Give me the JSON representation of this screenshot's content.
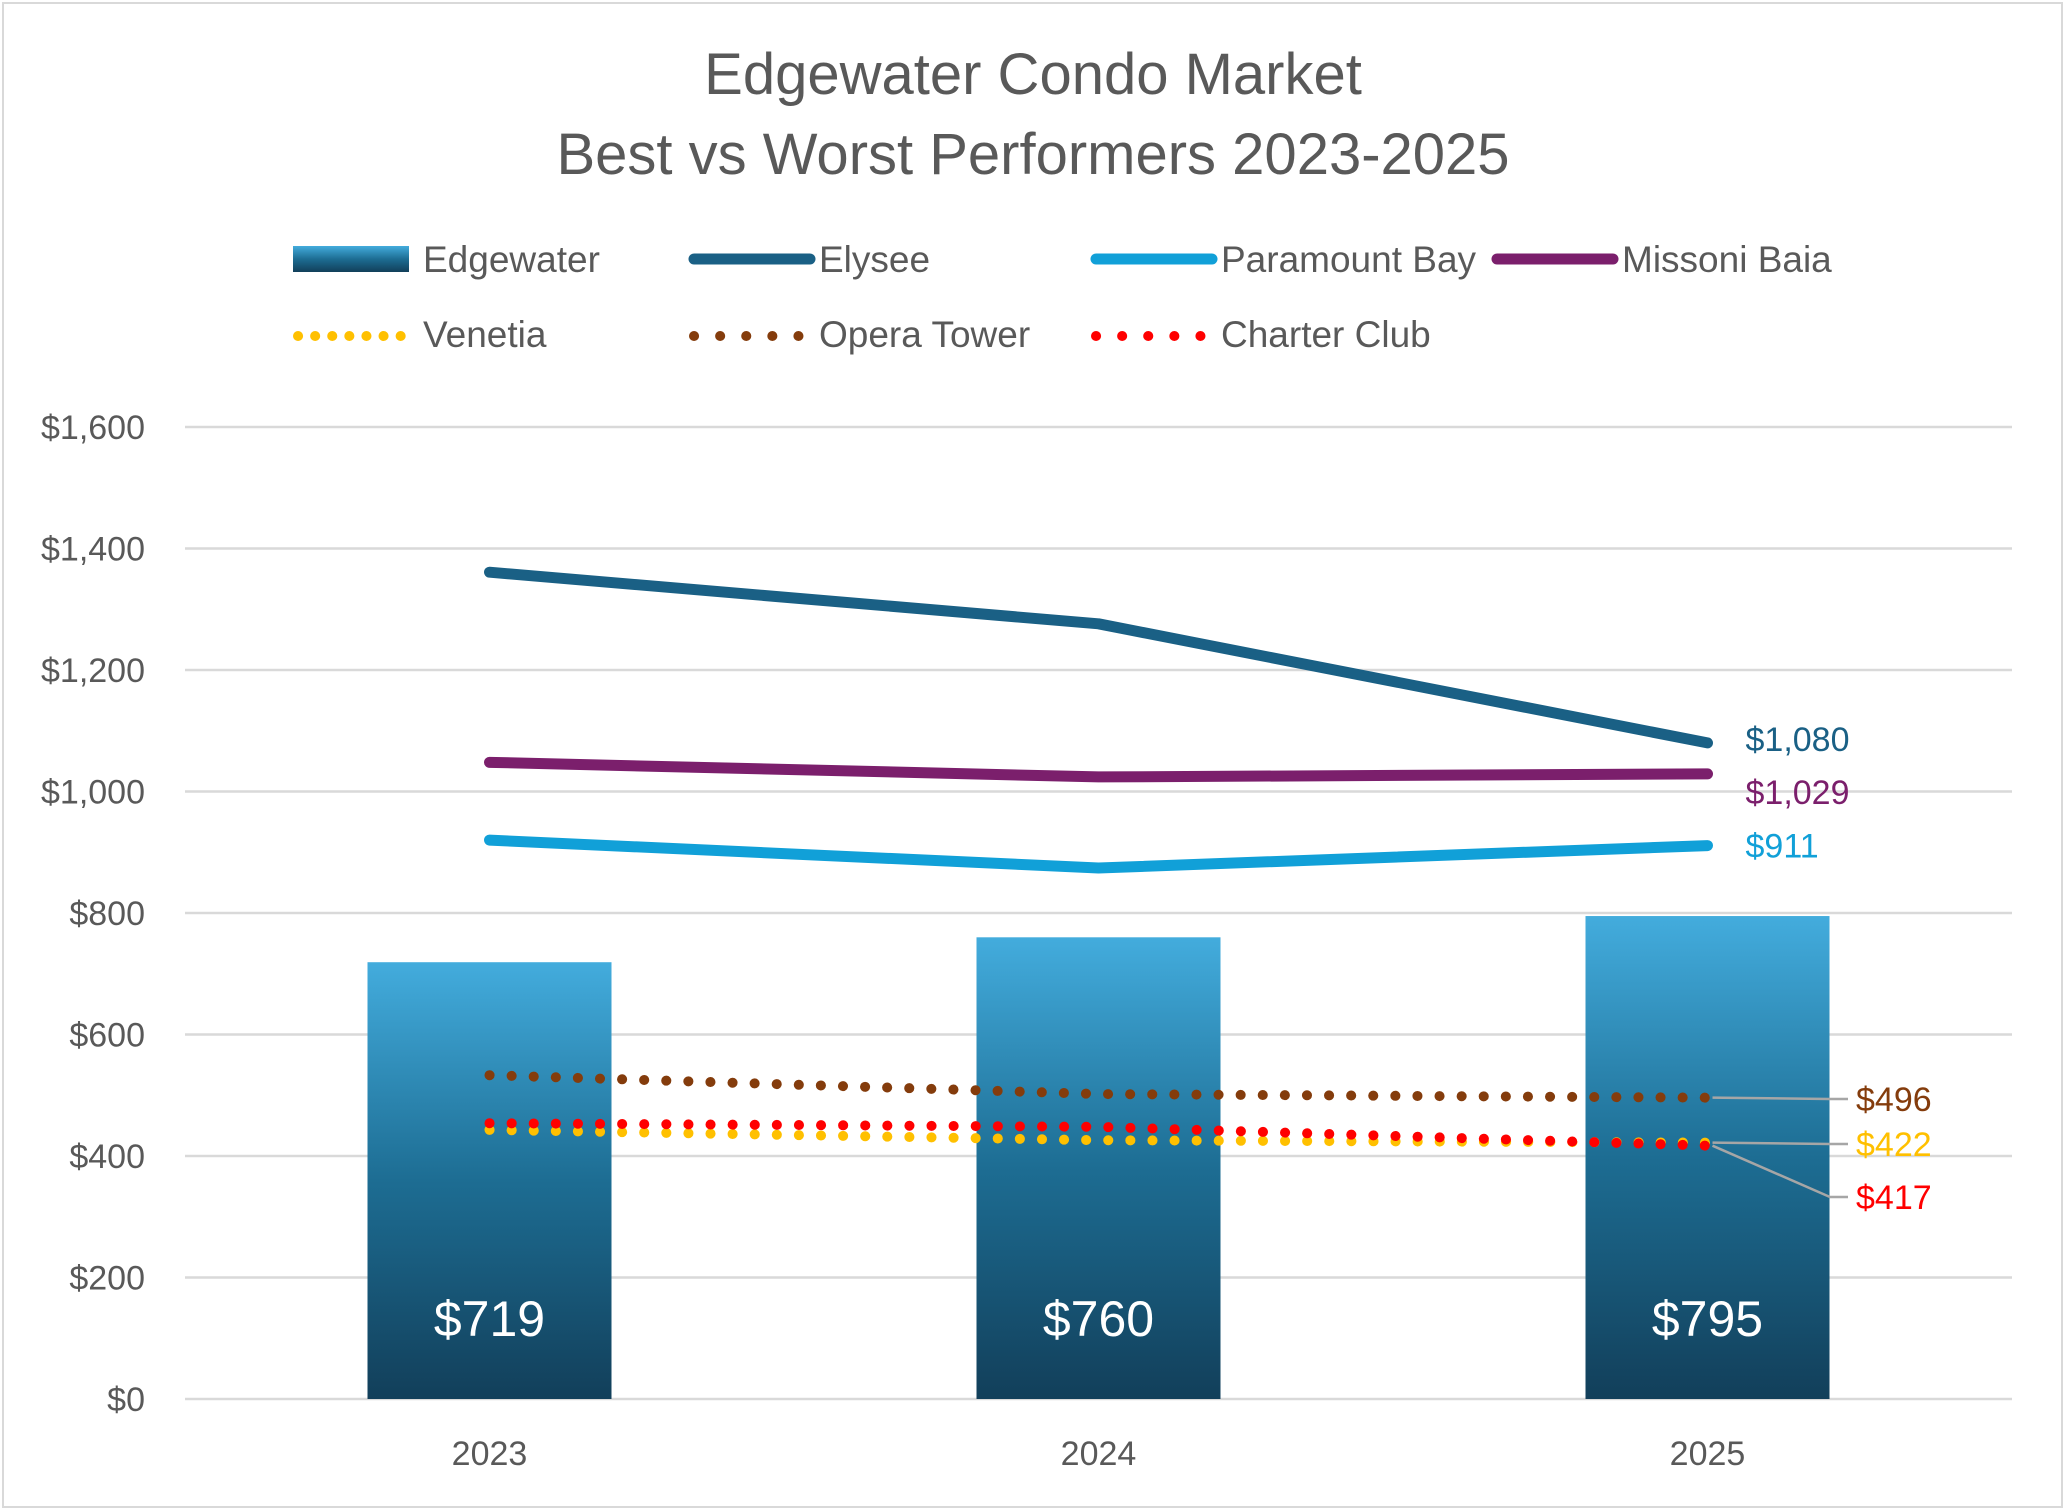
{
  "chart_data": {
    "type": "bar+line",
    "title": [
      "Edgewater Condo Market",
      "Best vs Worst Performers 2023-2025"
    ],
    "xlabel": "",
    "ylabel": "",
    "categories": [
      "2023",
      "2024",
      "2025"
    ],
    "ylim": [
      0,
      1600
    ],
    "yticks": [
      0,
      200,
      400,
      600,
      800,
      1000,
      1200,
      1400,
      1600
    ],
    "ytick_labels": [
      "$0",
      "$200",
      "$400",
      "$600",
      "$800",
      "$1,000",
      "$1,200",
      "$1,400",
      "$1,600"
    ],
    "grid": true,
    "legend_position": "top",
    "series": [
      {
        "name": "Edgewater",
        "kind": "bar",
        "color": "#1d6d93",
        "values": [
          719,
          760,
          795
        ],
        "data_labels": [
          "$719",
          "$760",
          "$795"
        ]
      },
      {
        "name": "Elysee",
        "kind": "line",
        "style": "solid",
        "color": "#1a6085",
        "values": [
          1361,
          1276,
          1080
        ],
        "end_label": "$1,080"
      },
      {
        "name": "Paramount Bay",
        "kind": "line",
        "style": "solid",
        "color": "#11a0d8",
        "values": [
          920,
          874,
          911
        ],
        "end_label": "$911"
      },
      {
        "name": "Missoni Baia",
        "kind": "line",
        "style": "solid",
        "color": "#7b1f6c",
        "values": [
          1048,
          1024,
          1029
        ],
        "end_label": "$1,029"
      },
      {
        "name": "Venetia",
        "kind": "line",
        "style": "dotted",
        "color": "#ffc000",
        "values": [
          443,
          426,
          422
        ],
        "end_label": "$422"
      },
      {
        "name": "Opera Tower",
        "kind": "line",
        "style": "dotted",
        "color": "#843c0c",
        "values": [
          533,
          502,
          496
        ],
        "end_label": "$496"
      },
      {
        "name": "Charter Club",
        "kind": "line",
        "style": "dotted",
        "color": "#ff0000",
        "values": [
          454,
          448,
          417
        ],
        "end_label": "$417"
      }
    ]
  }
}
